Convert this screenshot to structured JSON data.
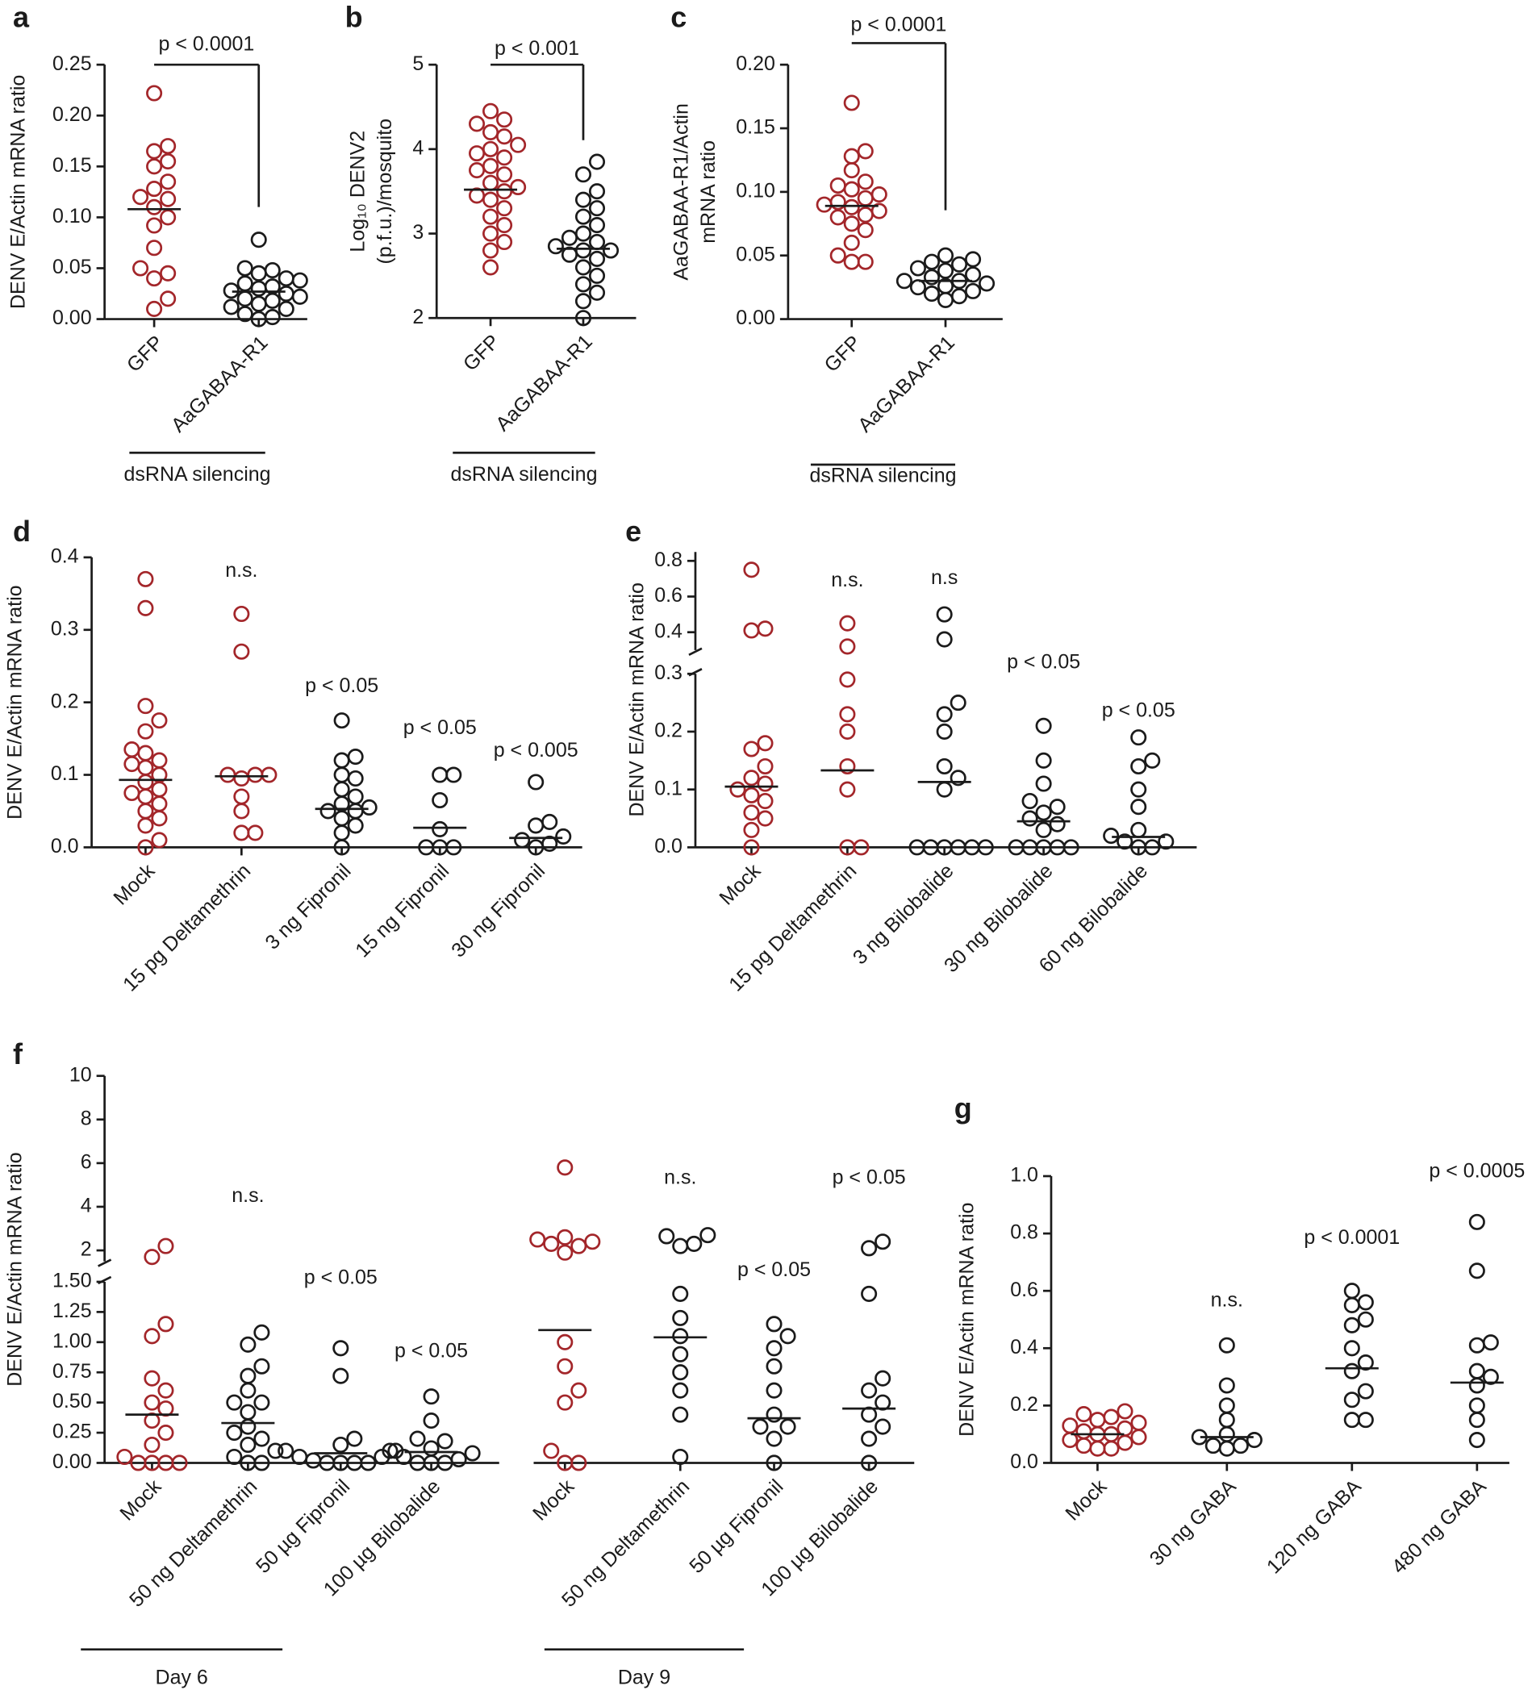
{
  "chart_data": [
    {
      "type": "dot",
      "panel": "a",
      "ylabel": [
        "DENV E/Actin mRNA ratio"
      ],
      "yaxis": [
        {
          "ylim": [
            0,
            0.25
          ],
          "yticks": [
            {
              "value": 0,
              "label": "0.00"
            },
            0.05,
            {
              "value": 0.1,
              "label": "0.10"
            },
            0.15,
            {
              "value": 0.2,
              "label": "0.20"
            },
            0.25
          ]
        }
      ],
      "groups": [
        {
          "label": "dsRNA silencing",
          "bracket": "p < 0.0001",
          "categories": [
            "GFP",
            "AaGABAA-R1"
          ],
          "colors": [
            "#a3262a",
            "#1b1b1b"
          ],
          "medians": [
            0.108,
            0.027
          ],
          "points": [
            [
              0.222,
              0.17,
              0.165,
              0.155,
              0.15,
              0.135,
              0.128,
              0.12,
              0.118,
              0.11,
              0.1,
              0.092,
              0.07,
              0.05,
              0.045,
              0.04,
              0.02,
              0.01
            ],
            [
              0.078,
              0.05,
              0.048,
              0.045,
              0.04,
              0.038,
              0.035,
              0.032,
              0.03,
              0.028,
              0.025,
              0.022,
              0.02,
              0.018,
              0.015,
              0.012,
              0.01,
              0.005,
              0.002,
              0
            ]
          ]
        }
      ]
    },
    {
      "type": "dot",
      "panel": "b",
      "ylabel": [
        "Log₁₀ DENV2",
        "(p.f.u.)/mosquito"
      ],
      "yaxis": [
        {
          "ylim": [
            2,
            5
          ],
          "yticks": [
            2,
            3,
            4,
            5
          ]
        }
      ],
      "groups": [
        {
          "label": "dsRNA silencing",
          "bracket": "p < 0.001",
          "categories": [
            "GFP",
            "AaGABAA-R1"
          ],
          "colors": [
            "#a3262a",
            "#1b1b1b"
          ],
          "medians": [
            3.52,
            2.82
          ],
          "points": [
            [
              4.45,
              4.35,
              4.3,
              4.2,
              4.15,
              4.05,
              4.0,
              3.95,
              3.9,
              3.8,
              3.75,
              3.7,
              3.6,
              3.55,
              3.5,
              3.45,
              3.4,
              3.3,
              3.2,
              3.1,
              3.0,
              2.9,
              2.8,
              2.6
            ],
            [
              3.85,
              3.7,
              3.5,
              3.4,
              3.3,
              3.2,
              3.1,
              3.0,
              2.95,
              2.9,
              2.85,
              2.8,
              2.8,
              2.75,
              2.7,
              2.6,
              2.5,
              2.4,
              2.3,
              2.2,
              2.0
            ]
          ]
        }
      ]
    },
    {
      "type": "dot",
      "panel": "c",
      "ylabel": [
        "AaGABAA-R1/Actin",
        "mRNA ratio"
      ],
      "yaxis": [
        {
          "ylim": [
            0,
            0.2
          ],
          "yticks": [
            {
              "value": 0,
              "label": "0.00"
            },
            0.05,
            {
              "value": 0.1,
              "label": "0.10"
            },
            0.15,
            {
              "value": 0.2,
              "label": "0.20"
            }
          ]
        }
      ],
      "groups": [
        {
          "label": "dsRNA silencing",
          "bracket": "p < 0.0001",
          "categories": [
            "GFP",
            "AaGABAA-R1"
          ],
          "colors": [
            "#a3262a",
            "#1b1b1b"
          ],
          "medians": [
            0.089,
            0.03
          ],
          "points": [
            [
              0.17,
              0.132,
              0.128,
              0.117,
              0.108,
              0.105,
              0.102,
              0.098,
              0.095,
              0.092,
              0.09,
              0.088,
              0.085,
              0.082,
              0.08,
              0.075,
              0.07,
              0.06,
              0.05,
              0.045,
              0.045
            ],
            [
              0.05,
              0.047,
              0.045,
              0.043,
              0.04,
              0.038,
              0.035,
              0.033,
              0.03,
              0.03,
              0.028,
              0.026,
              0.025,
              0.022,
              0.02,
              0.018,
              0.015
            ]
          ]
        }
      ]
    },
    {
      "type": "dot",
      "panel": "d",
      "ylabel": [
        "DENV E/Actin mRNA ratio"
      ],
      "yaxis": [
        {
          "ylim": [
            0,
            0.4
          ],
          "yticks": [
            {
              "value": 0,
              "label": "0.0"
            },
            0.1,
            0.2,
            0.3,
            0.4
          ]
        }
      ],
      "groups": [
        {
          "categories": [
            "Mock",
            "15 pg Deltamethrin",
            "3 ng Fipronil",
            "15 ng Fipronil",
            "30 ng Fipronil"
          ],
          "colors": [
            "#a3262a",
            "#a3262a",
            "#1b1b1b",
            "#1b1b1b",
            "#1b1b1b"
          ],
          "annotations": [
            null,
            "n.s.",
            "p < 0.05",
            "p < 0.05",
            "p < 0.005"
          ],
          "medians": [
            0.093,
            0.098,
            0.053,
            0.027,
            0.013
          ],
          "points": [
            [
              0.37,
              0.33,
              0.195,
              0.175,
              0.16,
              0.135,
              0.13,
              0.12,
              0.115,
              0.11,
              0.1,
              0.09,
              0.08,
              0.075,
              0.07,
              0.06,
              0.05,
              0.04,
              0.03,
              0.01,
              0
            ],
            [
              0.322,
              0.27,
              0.1,
              0.1,
              0.1,
              0.095,
              0.07,
              0.05,
              0.02,
              0.02
            ],
            [
              0.175,
              0.125,
              0.12,
              0.1,
              0.095,
              0.08,
              0.07,
              0.06,
              0.055,
              0.05,
              0.05,
              0.04,
              0.03,
              0.02,
              0
            ],
            [
              0.1,
              0.1,
              0.065,
              0.025,
              0,
              0,
              0
            ],
            [
              0.09,
              0.035,
              0.03,
              0.015,
              0.01,
              0.005,
              0
            ]
          ]
        }
      ]
    },
    {
      "type": "dot",
      "panel": "e",
      "ylabel": [
        "DENV E/Actin mRNA ratio"
      ],
      "yaxis": [
        {
          "ylim": [
            0,
            0.3
          ],
          "yticks": [
            {
              "value": 0,
              "label": "0.0"
            },
            0.1,
            0.2,
            0.3
          ]
        },
        {
          "ylim": [
            0.3,
            0.85
          ],
          "yticks": [
            0.4,
            0.6,
            0.8
          ]
        }
      ],
      "groups": [
        {
          "categories": [
            "Mock",
            "15 pg Deltamethrin",
            "3 ng Bilobalide",
            "30 ng Bilobalide",
            "60 ng Bilobalide"
          ],
          "colors": [
            "#a3262a",
            "#a3262a",
            "#1b1b1b",
            "#1b1b1b",
            "#1b1b1b"
          ],
          "annotations": [
            null,
            "n.s.",
            "n.s",
            "p < 0.05",
            "p < 0.05"
          ],
          "medians": [
            0.105,
            0.133,
            0.113,
            0.045,
            0.018
          ],
          "points": [
            [
              0.75,
              0.42,
              0.41,
              0.18,
              0.17,
              0.14,
              0.12,
              0.11,
              0.1,
              0.09,
              0.08,
              0.06,
              0.05,
              0.03,
              0
            ],
            [
              0.45,
              0.32,
              0.29,
              0.23,
              0.2,
              0.14,
              0.1,
              0,
              0
            ],
            [
              0.5,
              0.36,
              0.25,
              0.23,
              0.2,
              0.14,
              0.12,
              0.1,
              0,
              0,
              0,
              0,
              0,
              0
            ],
            [
              0.21,
              0.15,
              0.11,
              0.08,
              0.07,
              0.06,
              0.05,
              0.04,
              0.03,
              0,
              0,
              0,
              0,
              0
            ],
            [
              0.19,
              0.15,
              0.14,
              0.1,
              0.07,
              0.03,
              0.02,
              0.01,
              0.01,
              0,
              0
            ]
          ]
        }
      ]
    },
    {
      "type": "dot",
      "panel": "f",
      "ylabel": [
        "DENV E/Actin mRNA ratio"
      ],
      "yaxis": [
        {
          "ylim": [
            0,
            1.5
          ],
          "yticks": [
            {
              "value": 0,
              "label": "0.00"
            },
            0.25,
            {
              "value": 0.5,
              "label": "0.50"
            },
            0.75,
            {
              "value": 1,
              "label": "1.00"
            },
            1.25,
            {
              "value": 1.5,
              "label": "1.50"
            }
          ]
        },
        {
          "ylim": [
            1.5,
            10
          ],
          "yticks": [
            2,
            4,
            6,
            8,
            10
          ]
        }
      ],
      "groups": [
        {
          "label": "Day 6",
          "categories": [
            "Mock",
            "50 ng Deltamethrin",
            "50 µg Fipronil",
            "100 µg Bilobalide"
          ],
          "colors": [
            "#a3262a",
            "#1b1b1b",
            "#1b1b1b",
            "#1b1b1b"
          ],
          "annotations": [
            null,
            "n.s.",
            "p < 0.05",
            "p < 0.05"
          ],
          "medians": [
            0.4,
            0.33,
            0.08,
            0.09
          ],
          "points": [
            [
              2.2,
              1.7,
              1.15,
              1.05,
              0.7,
              0.6,
              0.5,
              0.45,
              0.35,
              0.25,
              0.15,
              0.05,
              0,
              0,
              0,
              0
            ],
            [
              1.08,
              0.98,
              0.8,
              0.72,
              0.6,
              0.5,
              0.5,
              0.42,
              0.3,
              0.25,
              0.2,
              0.15,
              0.1,
              0.05,
              0,
              0
            ],
            [
              0.95,
              0.72,
              0.2,
              0.15,
              0.1,
              0.1,
              0.05,
              0.05,
              0.02,
              0,
              0,
              0,
              0
            ],
            [
              0.55,
              0.35,
              0.2,
              0.18,
              0.12,
              0.1,
              0.08,
              0.05,
              0.03,
              0,
              0,
              0
            ]
          ]
        },
        {
          "label": "Day 9",
          "categories": [
            "Mock",
            "50 ng Deltamethrin",
            "50 µg Fipronil",
            "100 µg Bilobalide"
          ],
          "colors": [
            "#a3262a",
            "#1b1b1b",
            "#1b1b1b",
            "#1b1b1b"
          ],
          "annotations": [
            null,
            "n.s.",
            "p < 0.05",
            "p < 0.05"
          ],
          "medians": [
            1.1,
            1.04,
            0.37,
            0.45
          ],
          "points": [
            [
              5.8,
              2.6,
              2.5,
              2.4,
              2.3,
              2.2,
              1.9,
              1.0,
              0.8,
              0.6,
              0.5,
              0.1,
              0,
              0
            ],
            [
              2.7,
              2.65,
              2.3,
              2.2,
              1.4,
              1.2,
              1.05,
              0.9,
              0.75,
              0.6,
              0.4,
              0.05
            ],
            [
              1.15,
              1.05,
              0.95,
              0.8,
              0.6,
              0.4,
              0.3,
              0.3,
              0.2,
              0
            ],
            [
              2.4,
              2.1,
              1.4,
              0.7,
              0.6,
              0.5,
              0.4,
              0.3,
              0.2,
              0
            ]
          ]
        }
      ]
    },
    {
      "type": "dot",
      "panel": "g",
      "ylabel": [
        "DENV E/Actin mRNA ratio"
      ],
      "yaxis": [
        {
          "ylim": [
            0,
            1
          ],
          "yticks": [
            {
              "value": 0,
              "label": "0.0"
            },
            0.2,
            0.4,
            0.6,
            0.8,
            {
              "value": 1,
              "label": "1.0"
            }
          ]
        }
      ],
      "groups": [
        {
          "categories": [
            "Mock",
            "30 ng GABA",
            "120 ng GABA",
            "480 ng GABA"
          ],
          "colors": [
            "#a3262a",
            "#1b1b1b",
            "#1b1b1b",
            "#1b1b1b"
          ],
          "annotations": [
            null,
            "n.s.",
            "p < 0.0001",
            "p < 0.0005"
          ],
          "medians": [
            0.1,
            0.09,
            0.33,
            0.28
          ],
          "points": [
            [
              0.18,
              0.17,
              0.16,
              0.15,
              0.14,
              0.13,
              0.12,
              0.11,
              0.1,
              0.1,
              0.09,
              0.08,
              0.07,
              0.06,
              0.05,
              0.05
            ],
            [
              0.41,
              0.27,
              0.2,
              0.15,
              0.1,
              0.09,
              0.08,
              0.06,
              0.06,
              0.05
            ],
            [
              0.6,
              0.56,
              0.55,
              0.5,
              0.48,
              0.4,
              0.35,
              0.32,
              0.25,
              0.22,
              0.15,
              0.15
            ],
            [
              0.84,
              0.67,
              0.42,
              0.41,
              0.32,
              0.3,
              0.27,
              0.2,
              0.15,
              0.08
            ]
          ]
        }
      ]
    }
  ]
}
